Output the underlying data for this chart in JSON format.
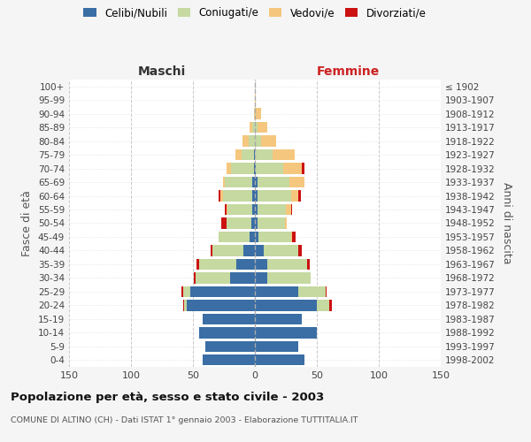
{
  "age_groups": [
    "0-4",
    "5-9",
    "10-14",
    "15-19",
    "20-24",
    "25-29",
    "30-34",
    "35-39",
    "40-44",
    "45-49",
    "50-54",
    "55-59",
    "60-64",
    "65-69",
    "70-74",
    "75-79",
    "80-84",
    "85-89",
    "90-94",
    "95-99",
    "100+"
  ],
  "birth_years": [
    "1998-2002",
    "1993-1997",
    "1988-1992",
    "1983-1987",
    "1978-1982",
    "1973-1977",
    "1968-1972",
    "1963-1967",
    "1958-1962",
    "1953-1957",
    "1948-1952",
    "1943-1947",
    "1938-1942",
    "1933-1937",
    "1928-1932",
    "1923-1927",
    "1918-1922",
    "1913-1917",
    "1908-1912",
    "1903-1907",
    "≤ 1902"
  ],
  "maschi": {
    "celibi": [
      42,
      40,
      45,
      42,
      55,
      52,
      20,
      15,
      9,
      4,
      3,
      2,
      2,
      2,
      1,
      1,
      0,
      0,
      0,
      0,
      0
    ],
    "coniugati": [
      0,
      0,
      0,
      0,
      2,
      6,
      28,
      30,
      25,
      25,
      20,
      20,
      24,
      22,
      18,
      10,
      5,
      2,
      0,
      0,
      0
    ],
    "vedovi": [
      0,
      0,
      0,
      0,
      0,
      0,
      0,
      0,
      0,
      0,
      0,
      1,
      2,
      2,
      4,
      5,
      5,
      2,
      1,
      0,
      0
    ],
    "divorziati": [
      0,
      0,
      0,
      0,
      1,
      1,
      1,
      2,
      2,
      0,
      4,
      1,
      1,
      0,
      0,
      0,
      0,
      0,
      0,
      0,
      0
    ]
  },
  "femmine": {
    "nubili": [
      40,
      35,
      50,
      38,
      50,
      35,
      10,
      10,
      7,
      3,
      2,
      2,
      2,
      2,
      1,
      0,
      0,
      0,
      0,
      0,
      0
    ],
    "coniugate": [
      0,
      0,
      0,
      0,
      10,
      22,
      35,
      32,
      28,
      26,
      22,
      23,
      27,
      26,
      22,
      14,
      5,
      2,
      1,
      0,
      0
    ],
    "vedove": [
      0,
      0,
      0,
      0,
      0,
      0,
      0,
      0,
      0,
      1,
      2,
      4,
      6,
      12,
      15,
      18,
      12,
      8,
      4,
      1,
      0
    ],
    "divorziate": [
      0,
      0,
      0,
      0,
      2,
      1,
      0,
      2,
      3,
      3,
      0,
      1,
      2,
      0,
      2,
      0,
      0,
      0,
      0,
      0,
      0
    ]
  },
  "colors": {
    "celibi_nubili": "#3a6ea5",
    "coniugati": "#c5d9a0",
    "vedovi": "#f5c77e",
    "divorziati": "#cc1111"
  },
  "xlim": 150,
  "title": "Popolazione per età, sesso e stato civile - 2003",
  "subtitle": "COMUNE DI ALTINO (CH) - Dati ISTAT 1° gennaio 2003 - Elaborazione TUTTITALIA.IT",
  "ylabel_left": "Fasce di età",
  "ylabel_right": "Anni di nascita",
  "xlabel_left": "Maschi",
  "xlabel_right": "Femmine",
  "legend_labels": [
    "Celibi/Nubili",
    "Coniugati/e",
    "Vedovi/e",
    "Divorziati/e"
  ],
  "bg_color": "#f5f5f5",
  "plot_bg_color": "#ffffff",
  "figsize": [
    6.0,
    5.0
  ],
  "dpi": 100
}
